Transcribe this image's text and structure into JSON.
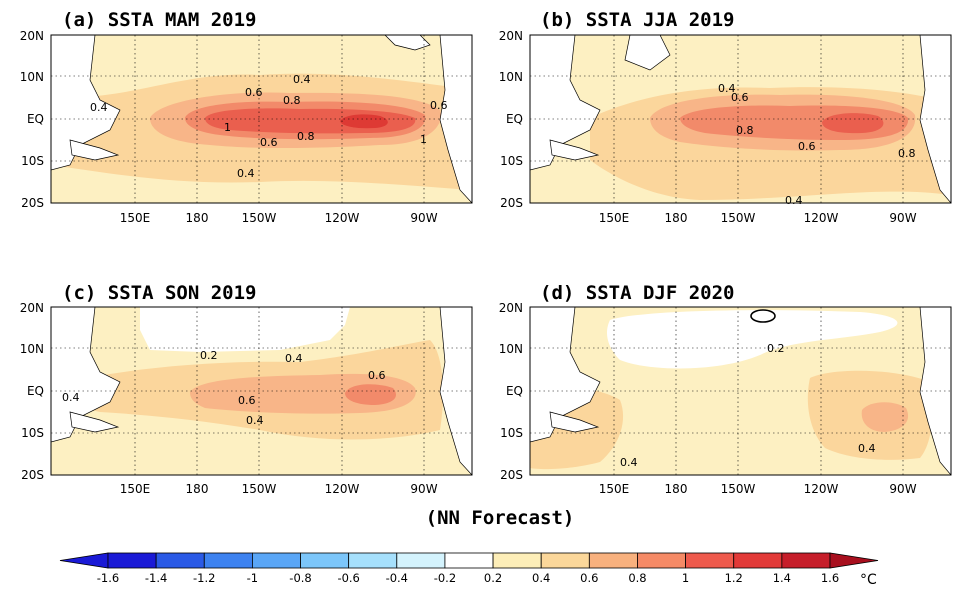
{
  "figure": {
    "subtitle": "(NN Forecast)",
    "unit": "°C"
  },
  "axes": {
    "lat_labels": [
      "20N",
      "10N",
      "EQ",
      "10S",
      "20S"
    ],
    "lon_labels": [
      "150E",
      "180",
      "150W",
      "120W",
      "90W"
    ]
  },
  "panels": [
    {
      "title": "(a) SSTA  MAM 2019",
      "contour_labels": [
        "0.4",
        "0.4",
        "0.6",
        "0.8",
        "1",
        "0.8",
        "0.6",
        "0.6",
        "1",
        "0.4"
      ]
    },
    {
      "title": "(b) SSTA  JJA 2019",
      "contour_labels": [
        "0.4",
        "0.6",
        "0.8",
        "0.6",
        "0.8",
        "0.4"
      ]
    },
    {
      "title": "(c) SSTA  SON 2019",
      "contour_labels": [
        "0.2",
        "0.4",
        "0.4",
        "0.6",
        "0.6",
        "0.4"
      ]
    },
    {
      "title": "(d) SSTA  DJF 2020",
      "contour_labels": [
        "0.2",
        "0.4",
        "0.4"
      ]
    }
  ],
  "colorbar": {
    "ticks": [
      "-1.6",
      "-1.4",
      "-1.2",
      "-1",
      "-0.8",
      "-0.6",
      "-0.4",
      "-0.2",
      "0.2",
      "0.4",
      "0.6",
      "0.8",
      "1",
      "1.2",
      "1.4",
      "1.6"
    ],
    "colors": [
      "#1a1ad6",
      "#2a5ae6",
      "#3d82f0",
      "#5aa6f6",
      "#7cc6fa",
      "#a6e0fc",
      "#d4f3fd",
      "#ffffff",
      "#fdeeb8",
      "#fbd79a",
      "#f8b17e",
      "#f58a66",
      "#ee5a4c",
      "#e23a38",
      "#c61e2a"
    ]
  },
  "colors": {
    "land": "#ffffff",
    "c02": "#fdf0c2",
    "c04": "#fbd69c",
    "c06": "#f8b588",
    "c08": "#f28a6a",
    "c10": "#ea5f4e",
    "c12": "#de3a34"
  }
}
